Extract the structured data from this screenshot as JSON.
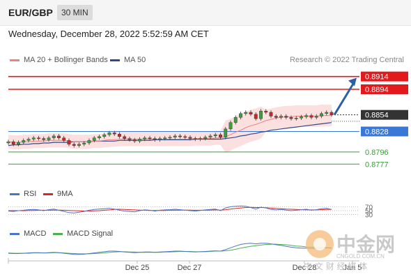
{
  "header": {
    "pair": "EUR/GBP",
    "timeframe": "30 MIN",
    "datetime": "Wednesday, December 28, 2022 5:52:59 AM CET",
    "credit": "Research © 2022 Trading Central"
  },
  "legend": {
    "ma20": "MA 20 + Bollinger Bands",
    "ma50": "MA 50",
    "rsi": "RSI",
    "rsi_ma": "9MA",
    "macd": "MACD",
    "macd_signal": "MACD Signal"
  },
  "colors": {
    "bollinger": "#f08080",
    "ma50": "#2e4a8a",
    "resistance": "#e31a1c",
    "support_blue": "#3a78d8",
    "support_green": "#3a9a3a",
    "last_price": "#333333",
    "arrow": "#2e5fa3"
  },
  "watermark": {
    "logo_text": "中金网",
    "site": "CNGOLD.COM.CN",
    "tagline": "中 文 财 经 媒 体"
  },
  "chart_data": {
    "type": "line",
    "title": "",
    "price_levels": [
      {
        "label": "0.8914",
        "value": 0.8914,
        "kind": "resistance"
      },
      {
        "label": "0.8894",
        "value": 0.8894,
        "kind": "resistance"
      },
      {
        "label": "0.8854",
        "value": 0.8854,
        "kind": "last"
      },
      {
        "label": "0.8828",
        "value": 0.8828,
        "kind": "support-blue"
      },
      {
        "label": "0.8796",
        "value": 0.8796,
        "kind": "support-green"
      },
      {
        "label": "0.8777",
        "value": 0.8777,
        "kind": "support-green"
      }
    ],
    "ylim": [
      0.875,
      0.893
    ],
    "x_ticks": [
      "Dec 25",
      "Dec 27",
      "Dec 28",
      "Jan 5"
    ],
    "price_close": [
      0.8812,
      0.8808,
      0.8811,
      0.8814,
      0.8816,
      0.8818,
      0.8817,
      0.8815,
      0.8818,
      0.8821,
      0.8818,
      0.8814,
      0.8808,
      0.8806,
      0.8808,
      0.881,
      0.8814,
      0.8818,
      0.882,
      0.8823,
      0.8826,
      0.8824,
      0.882,
      0.8817,
      0.8815,
      0.8813,
      0.8816,
      0.8818,
      0.8817,
      0.8815,
      0.8817,
      0.8818,
      0.8819,
      0.8821,
      0.882,
      0.8819,
      0.8817,
      0.8816,
      0.8817,
      0.8819,
      0.8821,
      0.8823,
      0.8819,
      0.8832,
      0.8842,
      0.885,
      0.8856,
      0.8858,
      0.8855,
      0.8848,
      0.886,
      0.8858,
      0.8852,
      0.885,
      0.8852,
      0.885,
      0.8848,
      0.8849,
      0.8851,
      0.8853,
      0.885,
      0.8852,
      0.8856,
      0.8858,
      0.8854
    ],
    "ma20": [
      0.8812,
      0.8811,
      0.8811,
      0.8812,
      0.8812,
      0.8813,
      0.8813,
      0.8813,
      0.8814,
      0.8814,
      0.8814,
      0.8814,
      0.8813,
      0.8812,
      0.8812,
      0.8812,
      0.8812,
      0.8813,
      0.8813,
      0.8814,
      0.8815,
      0.8815,
      0.8816,
      0.8816,
      0.8816,
      0.8816,
      0.8816,
      0.8816,
      0.8816,
      0.8816,
      0.8816,
      0.8816,
      0.8816,
      0.8816,
      0.8816,
      0.8816,
      0.8816,
      0.8817,
      0.8817,
      0.8817,
      0.8817,
      0.8818,
      0.8818,
      0.882,
      0.8823,
      0.8827,
      0.883,
      0.8834,
      0.8837,
      0.8839,
      0.8842,
      0.8845,
      0.8847,
      0.8849,
      0.885,
      0.8851,
      0.8851,
      0.8852,
      0.8852,
      0.8852,
      0.8852,
      0.8852,
      0.8853,
      0.8853,
      0.8853
    ],
    "ma50": [
      0.8806,
      0.8807,
      0.8807,
      0.8808,
      0.8808,
      0.8809,
      0.8809,
      0.881,
      0.881,
      0.8811,
      0.8811,
      0.8811,
      0.8811,
      0.8812,
      0.8812,
      0.8812,
      0.8812,
      0.8813,
      0.8813,
      0.8813,
      0.8813,
      0.8813,
      0.8814,
      0.8814,
      0.8814,
      0.8814,
      0.8814,
      0.8814,
      0.8814,
      0.8815,
      0.8815,
      0.8815,
      0.8815,
      0.8815,
      0.8815,
      0.8815,
      0.8815,
      0.8816,
      0.8816,
      0.8816,
      0.8816,
      0.8816,
      0.8816,
      0.8817,
      0.8818,
      0.8819,
      0.8821,
      0.8822,
      0.8824,
      0.8825,
      0.8827,
      0.8828,
      0.883,
      0.8831,
      0.8832,
      0.8833,
      0.8834,
      0.8835,
      0.8836,
      0.8837,
      0.8838,
      0.8839,
      0.884,
      0.8841,
      0.8842
    ],
    "rsi_levels": [
      "70",
      "50",
      "30"
    ],
    "rsi_ylim": [
      0,
      100
    ],
    "rsi": [
      48,
      46,
      50,
      52,
      55,
      56,
      54,
      50,
      55,
      58,
      52,
      46,
      40,
      38,
      42,
      46,
      52,
      56,
      58,
      60,
      62,
      58,
      52,
      48,
      46,
      44,
      50,
      54,
      52,
      48,
      52,
      54,
      55,
      57,
      55,
      53,
      50,
      48,
      51,
      54,
      56,
      58,
      50,
      64,
      70,
      72,
      74,
      72,
      66,
      58,
      68,
      64,
      56,
      54,
      56,
      53,
      50,
      52,
      55,
      57,
      52,
      55,
      60,
      62,
      56
    ],
    "rsi_ma": [
      50,
      50,
      50,
      50,
      51,
      51,
      52,
      52,
      52,
      53,
      53,
      52,
      51,
      50,
      49,
      48,
      48,
      49,
      50,
      52,
      54,
      56,
      57,
      56,
      55,
      54,
      53,
      52,
      51,
      51,
      51,
      51,
      52,
      52,
      53,
      53,
      53,
      52,
      52,
      52,
      53,
      54,
      53,
      55,
      58,
      61,
      64,
      66,
      67,
      66,
      66,
      65,
      63,
      61,
      60,
      58,
      57,
      56,
      55,
      54,
      54,
      54,
      55,
      56,
      56
    ],
    "macd": [
      -0.4,
      -0.5,
      -0.5,
      -0.4,
      -0.3,
      -0.2,
      -0.2,
      -0.3,
      -0.2,
      -0.1,
      -0.2,
      -0.4,
      -0.6,
      -0.8,
      -0.8,
      -0.7,
      -0.5,
      -0.3,
      -0.1,
      0.1,
      0.3,
      0.3,
      0.2,
      0.0,
      -0.1,
      -0.2,
      -0.1,
      0.0,
      0.0,
      -0.1,
      0.0,
      0.1,
      0.2,
      0.3,
      0.3,
      0.2,
      0.1,
      0.0,
      0.1,
      0.2,
      0.3,
      0.4,
      0.3,
      0.8,
      1.4,
      2.0,
      2.5,
      2.8,
      2.9,
      2.7,
      2.9,
      2.9,
      2.7,
      2.4,
      2.2,
      1.9,
      1.6,
      1.4,
      1.3,
      1.3,
      1.2,
      1.2,
      1.3,
      1.4,
      1.3
    ],
    "macd_signal": [
      -0.3,
      -0.4,
      -0.4,
      -0.4,
      -0.4,
      -0.3,
      -0.3,
      -0.3,
      -0.3,
      -0.2,
      -0.2,
      -0.3,
      -0.4,
      -0.5,
      -0.6,
      -0.6,
      -0.6,
      -0.5,
      -0.4,
      -0.3,
      -0.1,
      0.0,
      0.1,
      0.1,
      0.0,
      0.0,
      -0.1,
      -0.1,
      -0.1,
      -0.1,
      -0.1,
      0.0,
      0.0,
      0.1,
      0.2,
      0.2,
      0.2,
      0.1,
      0.1,
      0.1,
      0.2,
      0.3,
      0.3,
      0.4,
      0.6,
      0.9,
      1.3,
      1.6,
      1.9,
      2.1,
      2.3,
      2.5,
      2.6,
      2.6,
      2.5,
      2.4,
      2.2,
      2.0,
      1.9,
      1.7,
      1.6,
      1.5,
      1.4,
      1.4,
      1.4
    ],
    "macd_ylim": [
      -2,
      4
    ],
    "forecast_arrow": {
      "from": 0.8854,
      "to": 0.8912
    }
  }
}
